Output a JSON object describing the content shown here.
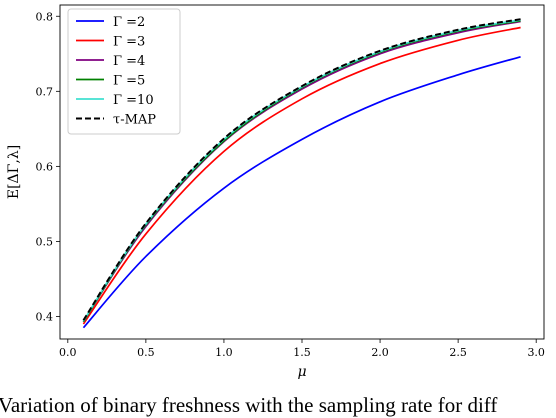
{
  "chart_data": {
    "type": "line",
    "xlabel": "μ",
    "ylabel": "E[ΔΓ,λ]",
    "xlim": [
      -0.05,
      3.05
    ],
    "ylim": [
      0.37,
      0.815
    ],
    "xticks": [
      0.0,
      0.5,
      1.0,
      1.5,
      2.0,
      2.5,
      3.0
    ],
    "xtick_labels": [
      "0.0",
      "0.5",
      "1.0",
      "1.5",
      "2.0",
      "2.5",
      "3.0"
    ],
    "yticks": [
      0.4,
      0.5,
      0.6,
      0.7,
      0.8
    ],
    "ytick_labels": [
      "0.4",
      "0.5",
      "0.6",
      "0.7",
      "0.8"
    ],
    "grid": false,
    "legend_position": "top-left",
    "x": [
      0.1,
      0.5,
      1.0,
      1.5,
      2.0,
      2.5,
      2.9
    ],
    "series": [
      {
        "name": "Γ =2",
        "color": "#0000ff",
        "dash": "solid",
        "values": [
          0.385,
          0.48,
          0.571,
          0.636,
          0.686,
          0.722,
          0.746
        ]
      },
      {
        "name": "Γ =3",
        "color": "#ff0000",
        "dash": "solid",
        "values": [
          0.39,
          0.51,
          0.62,
          0.69,
          0.737,
          0.768,
          0.785
        ]
      },
      {
        "name": "Γ =4",
        "color": "#800080",
        "dash": "solid",
        "values": [
          0.393,
          0.52,
          0.633,
          0.703,
          0.75,
          0.778,
          0.793
        ]
      },
      {
        "name": "Γ =5",
        "color": "#008000",
        "dash": "solid",
        "values": [
          0.393,
          0.522,
          0.634,
          0.705,
          0.752,
          0.78,
          0.794
        ]
      },
      {
        "name": "Γ =10",
        "color": "#40e0d0",
        "dash": "solid",
        "values": [
          0.394,
          0.523,
          0.636,
          0.706,
          0.753,
          0.781,
          0.795
        ]
      },
      {
        "name": "τ-MAP",
        "color": "#000000",
        "dash": "dashed",
        "values": [
          0.395,
          0.524,
          0.637,
          0.707,
          0.754,
          0.782,
          0.796
        ]
      }
    ]
  },
  "caption": "Variation of binary freshness with the sampling rate for diff"
}
